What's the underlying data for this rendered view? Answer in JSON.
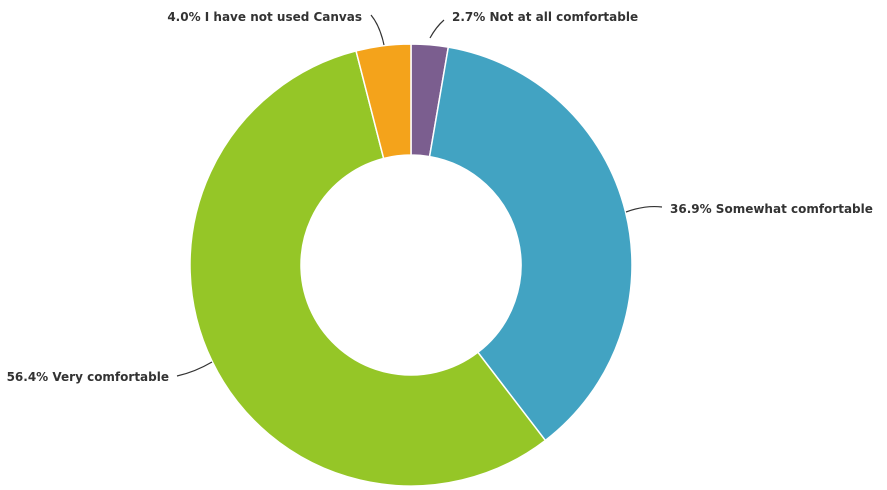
{
  "chart_data": {
    "type": "pie",
    "donut": true,
    "title": "",
    "slices": [
      {
        "name": "Not at all comfortable",
        "value": 2.7,
        "label": "2.7% Not at all comfortable",
        "color": "#7b5e8f"
      },
      {
        "name": "Somewhat comfortable",
        "value": 36.9,
        "label": "36.9% Somewhat comfortable",
        "color": "#42a3c2"
      },
      {
        "name": "Very comfortable",
        "value": 56.4,
        "label": "56.4% Very comfortable",
        "color": "#95c627"
      },
      {
        "name": "I have not used Canvas",
        "value": 4.0,
        "label": "4.0% I have not used Canvas",
        "color": "#f4a31b"
      }
    ]
  }
}
